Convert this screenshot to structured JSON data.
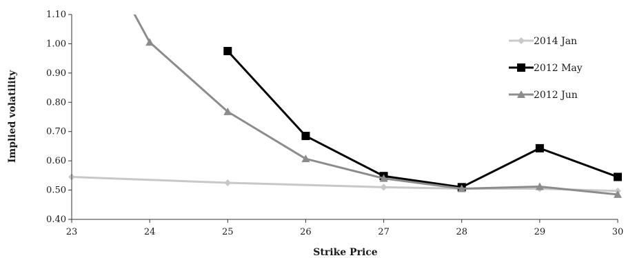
{
  "chart_data": {
    "type": "line",
    "xlabel": "Strike Price",
    "ylabel": "Implied volatility",
    "xlim": [
      23,
      30
    ],
    "ylim": [
      0.4,
      1.1
    ],
    "x_ticks": [
      "23",
      "24",
      "25",
      "26",
      "27",
      "28",
      "29",
      "30"
    ],
    "y_ticks": [
      "0.40",
      "0.50",
      "0.60",
      "0.70",
      "0.80",
      "0.90",
      "1.00",
      "1.10"
    ],
    "grid": false,
    "legend_position": "top-right",
    "series": [
      {
        "name": "2014 Jan",
        "marker": "diamond",
        "color": "#c8c8c8",
        "x": [
          23,
          25,
          27,
          28,
          29,
          30
        ],
        "values": [
          0.545,
          0.525,
          0.51,
          0.505,
          0.505,
          0.497
        ]
      },
      {
        "name": "2012 May",
        "marker": "square",
        "color": "#000000",
        "x": [
          25,
          26,
          27,
          28,
          29,
          30
        ],
        "values": [
          0.975,
          0.685,
          0.548,
          0.51,
          0.643,
          0.545
        ]
      },
      {
        "name": "2012 Jun",
        "marker": "triangle",
        "color": "#8c8c8c",
        "x": [
          23.5,
          24,
          25,
          26,
          27,
          28,
          29,
          30
        ],
        "values": [
          1.25,
          1.005,
          0.768,
          0.607,
          0.54,
          0.505,
          0.512,
          0.485
        ]
      }
    ]
  }
}
